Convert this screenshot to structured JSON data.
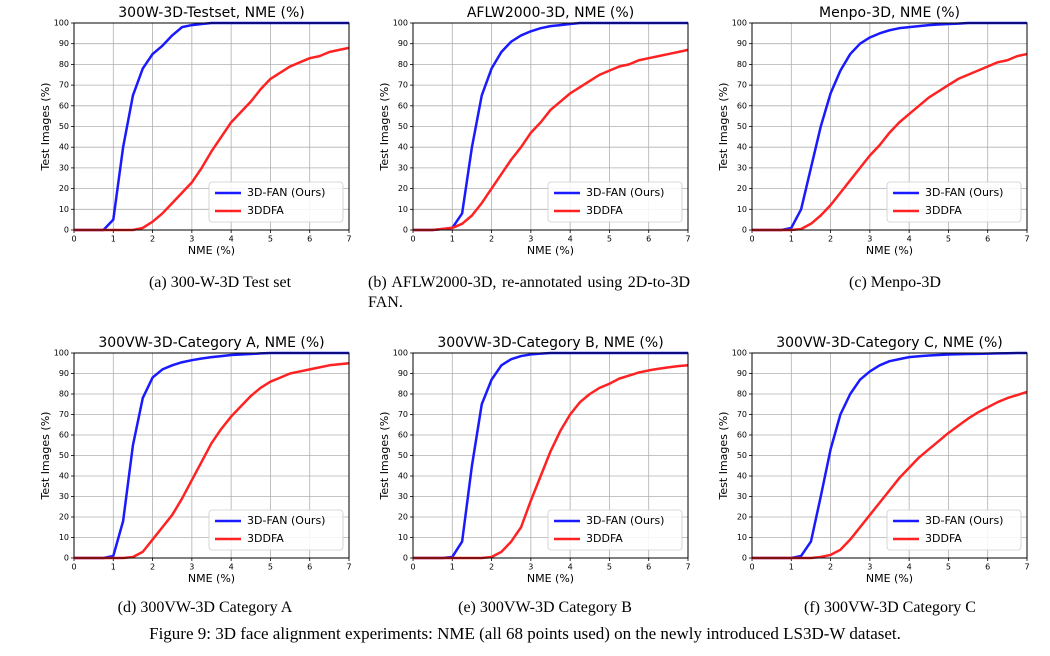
{
  "chart_data": [
    {
      "type": "line",
      "title": "300W-3D-Testset, NME (%)",
      "x_label": "NME (%)",
      "y_label": "Test Images (%)",
      "caption": "(a) 300-W-3D Test set",
      "x": [
        0,
        0.25,
        0.5,
        0.75,
        1,
        1.25,
        1.5,
        1.75,
        2,
        2.25,
        2.5,
        2.75,
        3,
        3.25,
        3.5,
        3.75,
        4,
        4.25,
        4.5,
        4.75,
        5,
        5.25,
        5.5,
        5.75,
        6,
        6.25,
        6.5,
        6.75,
        7
      ],
      "series": [
        {
          "name": "3D-FAN (Ours)",
          "color": "#1a1aff",
          "values": [
            0,
            0,
            0,
            0,
            5,
            40,
            65,
            78,
            85,
            89,
            94,
            98,
            99,
            99.5,
            100,
            100,
            100,
            100,
            100,
            100,
            100,
            100,
            100,
            100,
            100,
            100,
            100,
            100,
            100
          ]
        },
        {
          "name": "3DDFA",
          "color": "#ff2222",
          "values": [
            0,
            0,
            0,
            0,
            0,
            0,
            0,
            1,
            4,
            8,
            13,
            18,
            23,
            30,
            38,
            45,
            52,
            57,
            62,
            68,
            73,
            76,
            79,
            81,
            83,
            84,
            86,
            87,
            88
          ]
        }
      ],
      "xlim": [
        0,
        7
      ],
      "ylim": [
        0,
        100
      ],
      "xticks": [
        0,
        1,
        2,
        3,
        4,
        5,
        6,
        7
      ],
      "yticks": [
        0,
        10,
        20,
        30,
        40,
        50,
        60,
        70,
        80,
        90,
        100
      ],
      "grid": true,
      "legend": "lower right"
    },
    {
      "type": "line",
      "title": "AFLW2000-3D, NME (%)",
      "x_label": "NME (%)",
      "y_label": "Test Images (%)",
      "caption": "(b) AFLW2000-3D, re-annotated using 2D-to-3D FAN.",
      "x": [
        0,
        0.25,
        0.5,
        0.75,
        1,
        1.25,
        1.5,
        1.75,
        2,
        2.25,
        2.5,
        2.75,
        3,
        3.25,
        3.5,
        3.75,
        4,
        4.25,
        4.5,
        4.75,
        5,
        5.25,
        5.5,
        5.75,
        6,
        6.25,
        6.5,
        6.75,
        7
      ],
      "series": [
        {
          "name": "3D-FAN (Ours)",
          "color": "#1a1aff",
          "values": [
            0,
            0,
            0,
            0.5,
            1,
            8,
            40,
            65,
            78,
            86,
            91,
            94,
            96,
            97.5,
            98.5,
            99,
            99.5,
            100,
            100,
            100,
            100,
            100,
            100,
            100,
            100,
            100,
            100,
            100,
            100
          ]
        },
        {
          "name": "3DDFA",
          "color": "#ff2222",
          "values": [
            0,
            0,
            0,
            0.5,
            1,
            3,
            7,
            13,
            20,
            27,
            34,
            40,
            47,
            52,
            58,
            62,
            66,
            69,
            72,
            75,
            77,
            79,
            80,
            82,
            83,
            84,
            85,
            86,
            87
          ]
        }
      ],
      "xlim": [
        0,
        7
      ],
      "ylim": [
        0,
        100
      ],
      "xticks": [
        0,
        1,
        2,
        3,
        4,
        5,
        6,
        7
      ],
      "yticks": [
        0,
        10,
        20,
        30,
        40,
        50,
        60,
        70,
        80,
        90,
        100
      ],
      "grid": true,
      "legend": "lower right"
    },
    {
      "type": "line",
      "title": "Menpo-3D, NME (%)",
      "x_label": "NME (%)",
      "y_label": "Test Images (%)",
      "caption": "(c) Menpo-3D",
      "x": [
        0,
        0.25,
        0.5,
        0.75,
        1,
        1.25,
        1.5,
        1.75,
        2,
        2.25,
        2.5,
        2.75,
        3,
        3.25,
        3.5,
        3.75,
        4,
        4.25,
        4.5,
        4.75,
        5,
        5.25,
        5.5,
        5.75,
        6,
        6.25,
        6.5,
        6.75,
        7
      ],
      "series": [
        {
          "name": "3D-FAN (Ours)",
          "color": "#1a1aff",
          "values": [
            0,
            0,
            0,
            0,
            1,
            10,
            30,
            50,
            66,
            77,
            85,
            90,
            93,
            95,
            96.5,
            97.5,
            98,
            98.5,
            99,
            99.3,
            99.5,
            99.7,
            100,
            100,
            100,
            100,
            100,
            100,
            100
          ]
        },
        {
          "name": "3DDFA",
          "color": "#ff2222",
          "values": [
            0,
            0,
            0,
            0,
            0,
            0.5,
            3,
            7,
            12,
            18,
            24,
            30,
            36,
            41,
            47,
            52,
            56,
            60,
            64,
            67,
            70,
            73,
            75,
            77,
            79,
            81,
            82,
            84,
            85
          ]
        }
      ],
      "xlim": [
        0,
        7
      ],
      "ylim": [
        0,
        100
      ],
      "xticks": [
        0,
        1,
        2,
        3,
        4,
        5,
        6,
        7
      ],
      "yticks": [
        0,
        10,
        20,
        30,
        40,
        50,
        60,
        70,
        80,
        90,
        100
      ],
      "grid": true,
      "legend": "lower right"
    },
    {
      "type": "line",
      "title": "300VW-3D-Category A, NME (%)",
      "x_label": "NME (%)",
      "y_label": "Test Images (%)",
      "caption": "(d) 300VW-3D Category A",
      "x": [
        0,
        0.25,
        0.5,
        0.75,
        1,
        1.25,
        1.5,
        1.75,
        2,
        2.25,
        2.5,
        2.75,
        3,
        3.25,
        3.5,
        3.75,
        4,
        4.25,
        4.5,
        4.75,
        5,
        5.25,
        5.5,
        5.75,
        6,
        6.25,
        6.5,
        6.75,
        7
      ],
      "series": [
        {
          "name": "3D-FAN (Ours)",
          "color": "#1a1aff",
          "values": [
            0,
            0,
            0,
            0,
            1,
            18,
            55,
            78,
            88,
            92,
            94,
            95.5,
            96.5,
            97.3,
            98,
            98.5,
            99,
            99.3,
            99.5,
            99.8,
            100,
            100,
            100,
            100,
            100,
            100,
            100,
            100,
            100
          ]
        },
        {
          "name": "3DDFA",
          "color": "#ff2222",
          "values": [
            0,
            0,
            0,
            0,
            0,
            0,
            0.5,
            3,
            9,
            15,
            21,
            29,
            38,
            47,
            56,
            63,
            69,
            74,
            79,
            83,
            86,
            88,
            90,
            91,
            92,
            93,
            94,
            94.5,
            95
          ]
        }
      ],
      "xlim": [
        0,
        7
      ],
      "ylim": [
        0,
        100
      ],
      "xticks": [
        0,
        1,
        2,
        3,
        4,
        5,
        6,
        7
      ],
      "yticks": [
        0,
        10,
        20,
        30,
        40,
        50,
        60,
        70,
        80,
        90,
        100
      ],
      "grid": true,
      "legend": "lower right"
    },
    {
      "type": "line",
      "title": "300VW-3D-Category B, NME (%)",
      "x_label": "NME (%)",
      "y_label": "Test Images (%)",
      "caption": "(e) 300VW-3D Category B",
      "x": [
        0,
        0.25,
        0.5,
        0.75,
        1,
        1.25,
        1.5,
        1.75,
        2,
        2.25,
        2.5,
        2.75,
        3,
        3.25,
        3.5,
        3.75,
        4,
        4.25,
        4.5,
        4.75,
        5,
        5.25,
        5.5,
        5.75,
        6,
        6.25,
        6.5,
        6.75,
        7
      ],
      "series": [
        {
          "name": "3D-FAN (Ours)",
          "color": "#1a1aff",
          "values": [
            0,
            0,
            0,
            0,
            0.5,
            8,
            45,
            75,
            87,
            94,
            97,
            98.5,
            99.3,
            99.7,
            100,
            100,
            100,
            100,
            100,
            100,
            100,
            100,
            100,
            100,
            100,
            100,
            100,
            100,
            100
          ]
        },
        {
          "name": "3DDFA",
          "color": "#ff2222",
          "values": [
            0,
            0,
            0,
            0,
            0,
            0,
            0,
            0,
            0.5,
            3,
            8,
            15,
            28,
            40,
            52,
            62,
            70,
            76,
            80,
            83,
            85,
            87.5,
            89,
            90.5,
            91.5,
            92.3,
            93,
            93.6,
            94
          ]
        }
      ],
      "xlim": [
        0,
        7
      ],
      "ylim": [
        0,
        100
      ],
      "xticks": [
        0,
        1,
        2,
        3,
        4,
        5,
        6,
        7
      ],
      "yticks": [
        0,
        10,
        20,
        30,
        40,
        50,
        60,
        70,
        80,
        90,
        100
      ],
      "grid": true,
      "legend": "lower right"
    },
    {
      "type": "line",
      "title": "300VW-3D-Category C, NME (%)",
      "x_label": "NME (%)",
      "y_label": "Test Images (%)",
      "caption": "(f) 300VW-3D Category C",
      "x": [
        0,
        0.25,
        0.5,
        0.75,
        1,
        1.25,
        1.5,
        1.75,
        2,
        2.25,
        2.5,
        2.75,
        3,
        3.25,
        3.5,
        3.75,
        4,
        4.25,
        4.5,
        4.75,
        5,
        5.25,
        5.5,
        5.75,
        6,
        6.25,
        6.5,
        6.75,
        7
      ],
      "series": [
        {
          "name": "3D-FAN (Ours)",
          "color": "#1a1aff",
          "values": [
            0,
            0,
            0,
            0,
            0,
            1,
            8,
            30,
            53,
            70,
            80,
            87,
            91,
            94,
            96,
            97,
            98,
            98.4,
            98.8,
            99,
            99.3,
            99.4,
            99.5,
            99.6,
            99.7,
            99.8,
            99.9,
            100,
            100
          ]
        },
        {
          "name": "3DDFA",
          "color": "#ff2222",
          "values": [
            0,
            0,
            0,
            0,
            0,
            0,
            0,
            0.5,
            1.5,
            4,
            9,
            15,
            21,
            27,
            33,
            39,
            44,
            49,
            53,
            57,
            61,
            64.5,
            68,
            71,
            73.5,
            76,
            78,
            79.5,
            81
          ]
        }
      ],
      "xlim": [
        0,
        7
      ],
      "ylim": [
        0,
        100
      ],
      "xticks": [
        0,
        1,
        2,
        3,
        4,
        5,
        6,
        7
      ],
      "yticks": [
        0,
        10,
        20,
        30,
        40,
        50,
        60,
        70,
        80,
        90,
        100
      ],
      "grid": true,
      "legend": "lower right"
    }
  ],
  "caption": "Figure 9: 3D face alignment experiments: NME (all 68 points used) on the newly introduced LS3D-W dataset."
}
